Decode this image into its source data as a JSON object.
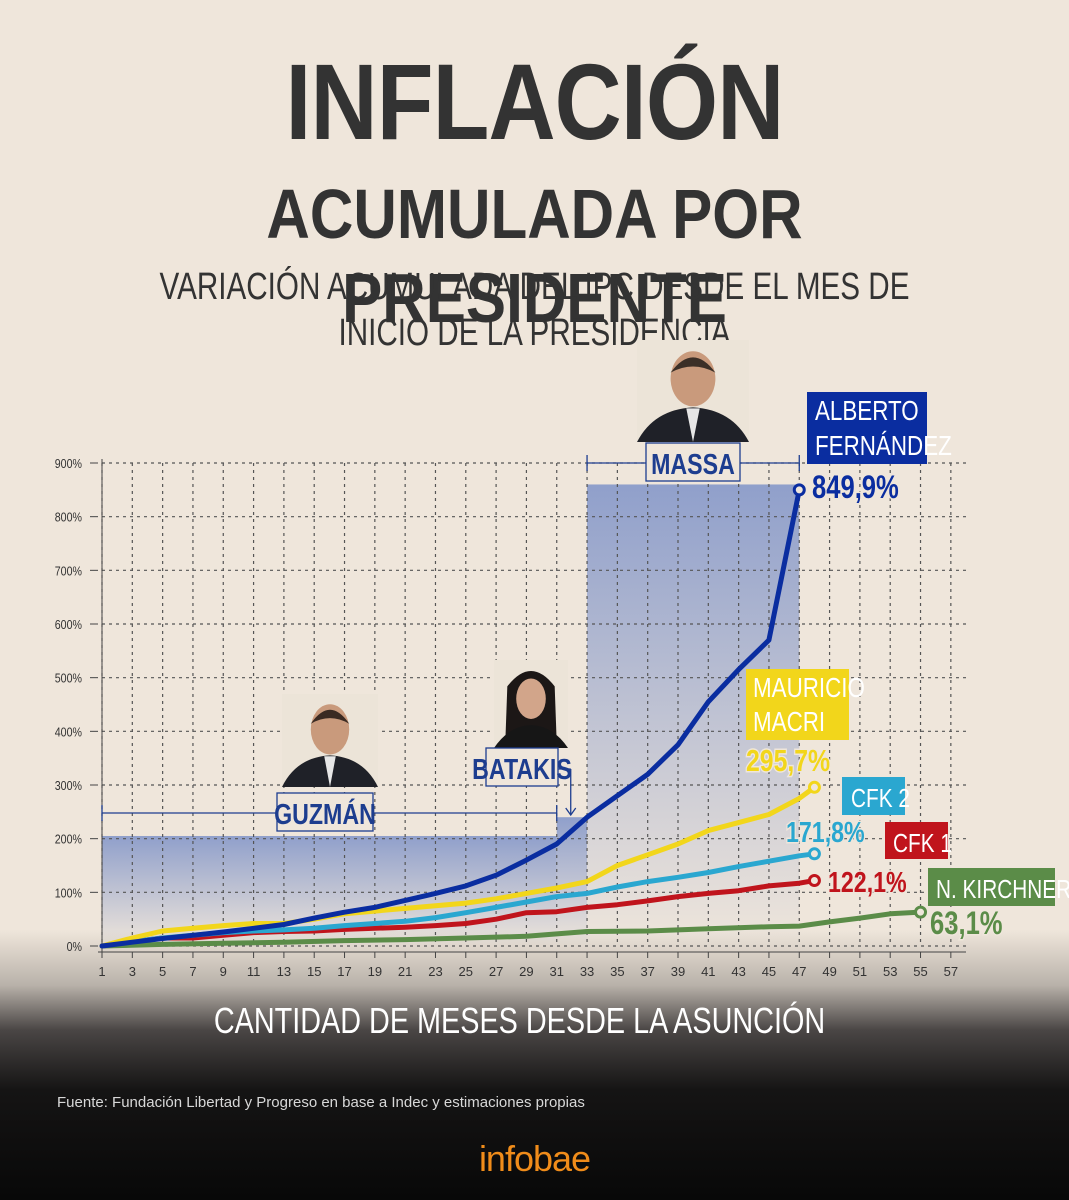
{
  "header": {
    "title": "INFLACIÓN",
    "subtitle": "ACUMULADA POR PRESIDENTE",
    "description": "VARIACIÓN ACUMULADA DEL IPC DESDE EL MES DE INICIO DE LA PRESIDENCIA"
  },
  "footer": {
    "source": "Fuente: Fundación Libertad y Progreso en base a Indec y estimaciones propias",
    "brand": "infobae"
  },
  "chart_data": {
    "type": "line",
    "title": "INFLACIÓN ACUMULADA POR PRESIDENTE",
    "subtitle": "VARIACIÓN ACUMULADA DEL IPC DESDE EL MES DE INICIO DE LA PRESIDENCIA",
    "xlabel": "CANTIDAD DE MESES DESDE LA ASUNCIÓN",
    "ylabel": "",
    "xlim": [
      1,
      58
    ],
    "ylim": [
      0,
      900
    ],
    "grid": true,
    "x_ticks": [
      1,
      3,
      5,
      7,
      9,
      11,
      13,
      15,
      17,
      19,
      21,
      23,
      25,
      27,
      29,
      31,
      33,
      35,
      37,
      39,
      41,
      43,
      45,
      47,
      49,
      51,
      53,
      55,
      57
    ],
    "y_ticks": [
      0,
      100,
      200,
      300,
      400,
      500,
      600,
      700,
      800,
      900
    ],
    "y_tick_labels": [
      "0%",
      "100%",
      "200%",
      "300%",
      "400%",
      "500%",
      "600%",
      "700%",
      "800%",
      "900%"
    ],
    "series": [
      {
        "name": "N. KIRCHNER",
        "label_lines": [
          "N. KIRCHNER"
        ],
        "final_label": "63,1%",
        "color": "#5b8c48",
        "label_text_color": "#ffffff",
        "x": [
          1,
          5,
          9,
          13,
          17,
          21,
          25,
          29,
          33,
          37,
          41,
          45,
          47,
          49,
          51,
          53,
          55
        ],
        "y": [
          0,
          3,
          5,
          7,
          10,
          12,
          15,
          18,
          27,
          28,
          32,
          36,
          37,
          45,
          52,
          60,
          63.1
        ]
      },
      {
        "name": "CFK 1",
        "label_lines": [
          "CFK 1"
        ],
        "final_label": "122,1%",
        "color": "#c0141c",
        "label_text_color": "#ffffff",
        "x": [
          1,
          3,
          5,
          7,
          9,
          11,
          13,
          15,
          17,
          19,
          21,
          23,
          25,
          27,
          29,
          31,
          33,
          35,
          37,
          39,
          41,
          43,
          45,
          47,
          48
        ],
        "y": [
          0,
          8,
          15,
          15,
          20,
          25,
          27,
          28,
          31,
          33,
          35,
          38,
          42,
          50,
          62,
          64,
          72,
          77,
          84,
          92,
          98,
          103,
          112,
          117,
          122.1
        ]
      },
      {
        "name": "CFK 2",
        "label_lines": [
          "CFK 2"
        ],
        "final_label": "171,8%",
        "color": "#2aa7d0",
        "label_text_color": "#ffffff",
        "x": [
          1,
          3,
          5,
          7,
          9,
          11,
          13,
          15,
          17,
          19,
          21,
          23,
          25,
          27,
          29,
          31,
          33,
          35,
          37,
          39,
          41,
          43,
          45,
          47,
          48
        ],
        "y": [
          0,
          8,
          15,
          20,
          25,
          28,
          30,
          33,
          38,
          42,
          46,
          53,
          62,
          72,
          82,
          92,
          98,
          110,
          120,
          128,
          137,
          148,
          158,
          168,
          171.8
        ]
      },
      {
        "name": "MAURICIO MACRI",
        "label_lines": [
          "MAURICIO",
          "MACRI"
        ],
        "final_label": "295,7%",
        "color": "#f2d61b",
        "label_text_color": "#ffffff",
        "x": [
          1,
          3,
          5,
          7,
          9,
          11,
          13,
          15,
          17,
          19,
          21,
          23,
          25,
          27,
          29,
          31,
          33,
          35,
          37,
          39,
          41,
          43,
          45,
          47,
          48
        ],
        "y": [
          0,
          15,
          28,
          33,
          38,
          42,
          42,
          50,
          60,
          65,
          70,
          75,
          80,
          88,
          98,
          108,
          120,
          150,
          170,
          190,
          215,
          230,
          245,
          275,
          295.7
        ]
      },
      {
        "name": "ALBERTO FERNÁNDEZ",
        "label_lines": [
          "ALBERTO",
          "FERNÁNDEZ"
        ],
        "final_label": "849,9%",
        "color": "#0a2da0",
        "label_text_color": "#ffffff",
        "x": [
          1,
          3,
          5,
          7,
          9,
          11,
          13,
          15,
          17,
          19,
          21,
          23,
          25,
          27,
          29,
          31,
          33,
          35,
          37,
          39,
          41,
          43,
          45,
          47
        ],
        "y": [
          0,
          7,
          14,
          20,
          26,
          33,
          40,
          52,
          63,
          72,
          85,
          98,
          112,
          132,
          160,
          190,
          240,
          280,
          320,
          375,
          455,
          515,
          570,
          849.9
        ]
      }
    ],
    "periods": [
      {
        "name": "GUZMÁN",
        "x_start": 1,
        "x_end": 31,
        "y_top": 205
      },
      {
        "name": "BATAKIS",
        "x_start": 31,
        "x_end": 33,
        "y_top": 240
      },
      {
        "name": "MASSA",
        "x_start": 33,
        "x_end": 47,
        "y_top": 860
      }
    ]
  }
}
